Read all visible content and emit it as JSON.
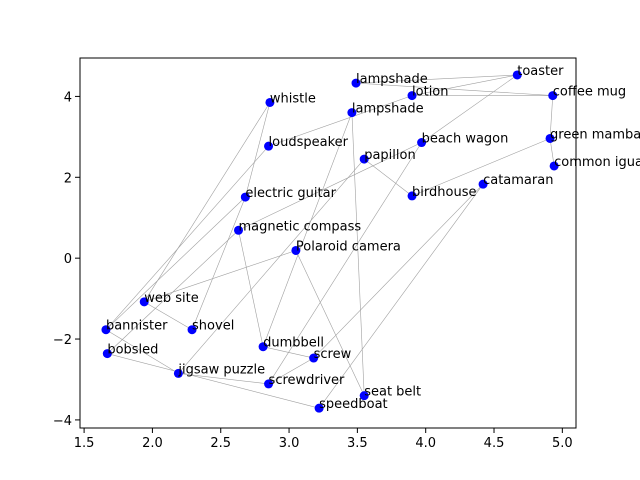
{
  "chart_data": {
    "type": "scatter",
    "title": "",
    "xlabel": "",
    "ylabel": "",
    "xlim": [
      1.47,
      5.1
    ],
    "ylim": [
      -4.2,
      4.95
    ],
    "grid": false,
    "x_ticks": [
      1.5,
      2.0,
      2.5,
      3.0,
      3.5,
      4.0,
      4.5,
      5.0
    ],
    "y_ticks": [
      -4,
      -2,
      0,
      2,
      4
    ],
    "x_tick_labels": [
      "1.5",
      "2.0",
      "2.5",
      "3.0",
      "3.5",
      "4.0",
      "4.5",
      "5.0"
    ],
    "y_tick_labels": [
      "−4",
      "−2",
      "0",
      "2",
      "4"
    ],
    "point_color": "#0000ff",
    "edge_color": "#a0a0a0",
    "points": [
      {
        "label": "toaster",
        "x": 4.67,
        "y": 4.53
      },
      {
        "label": "lampshade",
        "x": 3.49,
        "y": 4.33
      },
      {
        "label": "lotion",
        "x": 3.9,
        "y": 4.02
      },
      {
        "label": "coffee mug",
        "x": 4.93,
        "y": 4.02
      },
      {
        "label": "whistle",
        "x": 2.86,
        "y": 3.85
      },
      {
        "label": "lampshade",
        "x": 3.46,
        "y": 3.6
      },
      {
        "label": "beach wagon",
        "x": 3.97,
        "y": 2.86
      },
      {
        "label": "green mamba",
        "x": 4.91,
        "y": 2.96
      },
      {
        "label": "loudspeaker",
        "x": 2.85,
        "y": 2.77
      },
      {
        "label": "papillon",
        "x": 3.55,
        "y": 2.45
      },
      {
        "label": "common iguana",
        "x": 4.94,
        "y": 2.28
      },
      {
        "label": "catamaran",
        "x": 4.42,
        "y": 1.83
      },
      {
        "label": "birdhouse",
        "x": 3.9,
        "y": 1.54
      },
      {
        "label": "electric guitar",
        "x": 2.68,
        "y": 1.51
      },
      {
        "label": "magnetic compass",
        "x": 2.63,
        "y": 0.69
      },
      {
        "label": "Polaroid camera",
        "x": 3.05,
        "y": 0.19
      },
      {
        "label": "web site",
        "x": 1.94,
        "y": -1.08
      },
      {
        "label": "bannister",
        "x": 1.66,
        "y": -1.77
      },
      {
        "label": "shovel",
        "x": 2.29,
        "y": -1.77
      },
      {
        "label": "dumbbell",
        "x": 2.81,
        "y": -2.19
      },
      {
        "label": "bobsled",
        "x": 1.67,
        "y": -2.36
      },
      {
        "label": "screw",
        "x": 3.18,
        "y": -2.47
      },
      {
        "label": "jigsaw puzzle",
        "x": 2.19,
        "y": -2.85
      },
      {
        "label": "screwdriver",
        "x": 2.85,
        "y": -3.11
      },
      {
        "label": "seat belt",
        "x": 3.55,
        "y": -3.4
      },
      {
        "label": "speedboat",
        "x": 3.22,
        "y": -3.71
      }
    ],
    "edges": [
      [
        1,
        0
      ],
      [
        0,
        2
      ],
      [
        0,
        6
      ],
      [
        2,
        3
      ],
      [
        1,
        3
      ],
      [
        3,
        7
      ],
      [
        7,
        10
      ],
      [
        7,
        12
      ],
      [
        2,
        8
      ],
      [
        8,
        17
      ],
      [
        4,
        13
      ],
      [
        4,
        16
      ],
      [
        5,
        24
      ],
      [
        5,
        19
      ],
      [
        9,
        12
      ],
      [
        9,
        22
      ],
      [
        6,
        23
      ],
      [
        6,
        14
      ],
      [
        11,
        21
      ],
      [
        11,
        25
      ],
      [
        13,
        17
      ],
      [
        13,
        18
      ],
      [
        14,
        19
      ],
      [
        14,
        20
      ],
      [
        15,
        16
      ],
      [
        15,
        24
      ],
      [
        16,
        18
      ],
      [
        17,
        22
      ],
      [
        20,
        25
      ],
      [
        19,
        21
      ],
      [
        21,
        23
      ],
      [
        22,
        23
      ]
    ]
  }
}
